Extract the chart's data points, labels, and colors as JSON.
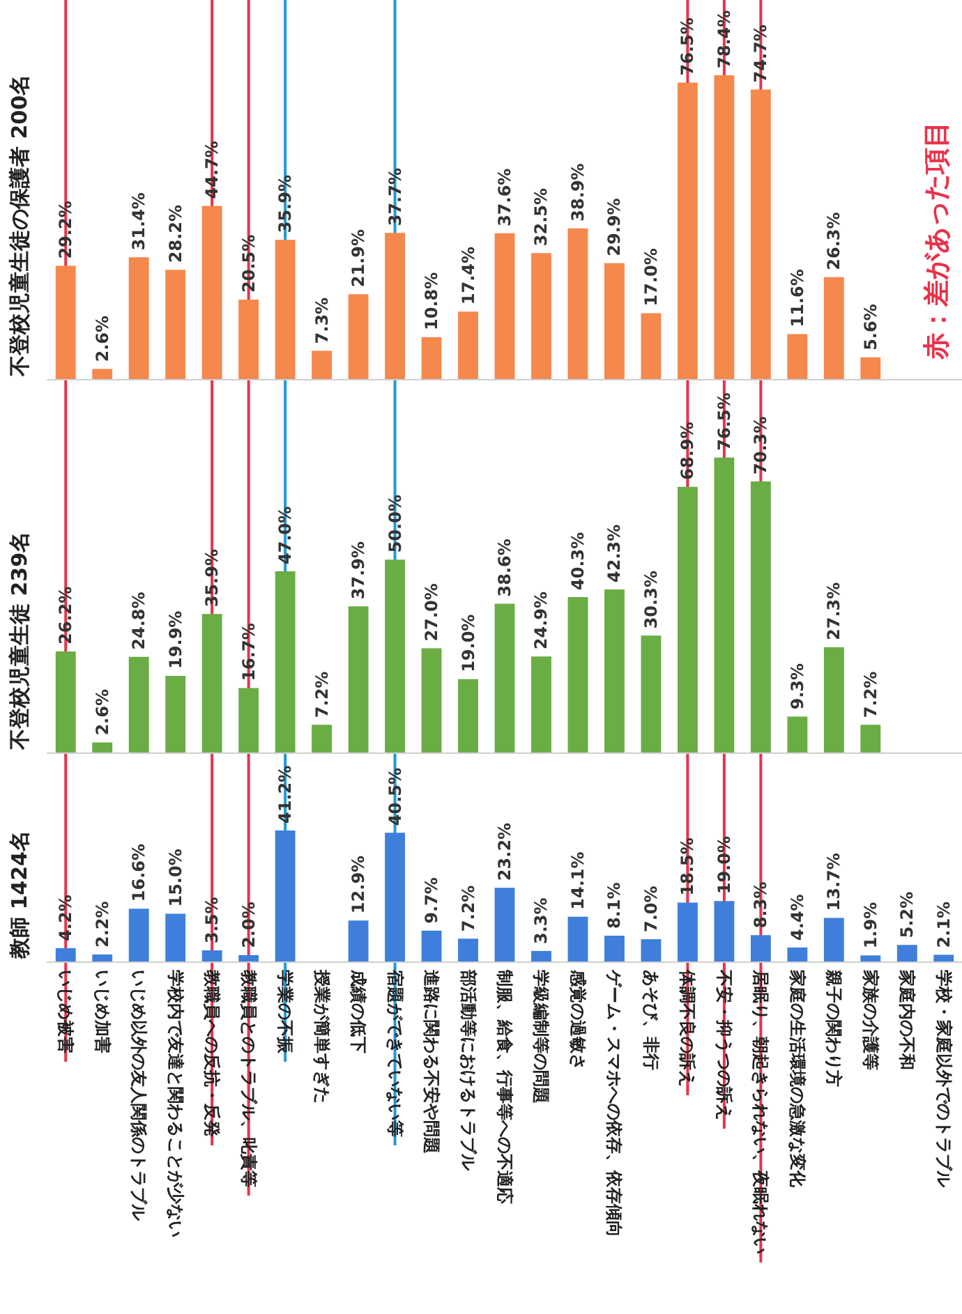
{
  "chart_data": [
    {
      "type": "bar",
      "title": "不登校児童生徒の保護者 200名",
      "tick_labels": false,
      "categories": [
        "いじめ被害",
        "いじめ加害",
        "いじめ以外の友人関係のトラブル",
        "学校内で友達と関わることが少ない",
        "教職員への反抗・反発",
        "教職員とのトラブル、叱責等",
        "学業の不振",
        "授業が簡単すぎた",
        "成績の低下",
        "宿題ができていない等",
        "進路に関わる不安や問題",
        "部活動等におけるトラブル",
        "制服、給食、行事等への不適応",
        "学級編制等の問題",
        "感覚の過敏さ",
        "ゲーム・スマホへの依存、依存傾向",
        "あそび、非行",
        "体調不良の訴え",
        "不安・抑うつの訴え",
        "居眠り、朝起きられない、夜眠れない",
        "家庭の生活環境の急激な変化",
        "親子の関わり方",
        "家族の介護等",
        "家庭内の不和",
        "学校・家庭以外でのトラブル"
      ],
      "series": [
        {
          "color": "#f4884d",
          "values": [
            29.2,
            2.6,
            31.4,
            28.2,
            44.7,
            20.5,
            35.9,
            7.3,
            21.9,
            37.7,
            10.8,
            17.4,
            37.6,
            32.5,
            38.9,
            29.9,
            17.0,
            76.5,
            78.4,
            74.7,
            11.6,
            26.3,
            5.6,
            null,
            null
          ],
          "value_labels": [
            "29.2%",
            "2.6%",
            "31.4%",
            "28.2%",
            "44.7%",
            "20.5%",
            "35.9%",
            "7.3%",
            "21.9%",
            "37.7%",
            "10.8%",
            "17.4%",
            "37.6%",
            "32.5%",
            "38.9%",
            "29.9%",
            "17.0%",
            "76.5%",
            "78.4%",
            "74.7%",
            "11.6%",
            "26.3%",
            "5.6%",
            null,
            null
          ]
        }
      ],
      "ref_lines": [
        {
          "axis": "x",
          "value": "いじめ被害",
          "color": "#e8334a"
        },
        {
          "axis": "x",
          "value": "教職員への反抗・反発",
          "color": "#e8334a"
        },
        {
          "axis": "x",
          "value": "教職員とのトラブル、叱責等",
          "color": "#e8334a"
        },
        {
          "axis": "x",
          "value": "学業の不振",
          "color": "#1f9ad6"
        },
        {
          "axis": "x",
          "value": "宿題ができていない等",
          "color": "#1f9ad6"
        },
        {
          "axis": "x",
          "value": "体調不良の訴え",
          "color": "#e8334a"
        },
        {
          "axis": "x",
          "value": "不安・抑うつの訴え",
          "color": "#e8334a"
        },
        {
          "axis": "x",
          "value": "居眠り、朝起きられない、夜眠れない",
          "color": "#e8334a"
        }
      ],
      "annotations": [
        "赤：差があった項目"
      ]
    },
    {
      "type": "bar",
      "title": "不登校児童生徒 239名",
      "tick_labels": false,
      "categories": [
        "いじめ被害",
        "いじめ加害",
        "いじめ以外の友人関係のトラブル",
        "学校内で友達と関わることが少ない",
        "教職員への反抗・反発",
        "教職員とのトラブル、叱責等",
        "学業の不振",
        "授業が簡単すぎた",
        "成績の低下",
        "宿題ができていない等",
        "進路に関わる不安や問題",
        "部活動等におけるトラブル",
        "制服、給食、行事等への不適応",
        "学級編制等の問題",
        "感覚の過敏さ",
        "ゲーム・スマホへの依存、依存傾向",
        "あそび、非行",
        "体調不良の訴え",
        "不安・抑うつの訴え",
        "居眠り、朝起きられない、夜眠れない",
        "家庭の生活環境の急激な変化",
        "親子の関わり方",
        "家族の介護等",
        "家庭内の不和",
        "学校・家庭以外でのトラブル"
      ],
      "series": [
        {
          "color": "#6aad45",
          "values": [
            26.2,
            2.6,
            24.8,
            19.9,
            35.9,
            16.7,
            47.0,
            7.2,
            37.9,
            50.0,
            27.0,
            19.0,
            38.6,
            24.9,
            40.3,
            42.3,
            30.3,
            68.9,
            76.5,
            70.3,
            9.3,
            27.3,
            7.2,
            null,
            null
          ],
          "value_labels": [
            "26.2%",
            "2.6%",
            "24.8%",
            "19.9%",
            "35.9%",
            "16.7%",
            "47.0%",
            "7.2%",
            "37.9%",
            "50.0%",
            "27.0%",
            "19.0%",
            "38.6%",
            "24.9%",
            "40.3%",
            "42.3%",
            "30.3%",
            "68.9%",
            "76.5%",
            "70.3%",
            "9.3%",
            "27.3%",
            "7.2%",
            null,
            null
          ]
        }
      ],
      "ref_lines": [
        {
          "axis": "x",
          "value": "いじめ被害",
          "color": "#e8334a"
        },
        {
          "axis": "x",
          "value": "教職員への反抗・反発",
          "color": "#e8334a"
        },
        {
          "axis": "x",
          "value": "教職員とのトラブル、叱責等",
          "color": "#e8334a"
        },
        {
          "axis": "x",
          "value": "学業の不振",
          "color": "#1f9ad6"
        },
        {
          "axis": "x",
          "value": "宿題ができていない等",
          "color": "#1f9ad6"
        },
        {
          "axis": "x",
          "value": "体調不良の訴え",
          "color": "#e8334a"
        },
        {
          "axis": "x",
          "value": "不安・抑うつの訴え",
          "color": "#e8334a"
        },
        {
          "axis": "x",
          "value": "居眠り、朝起きられない、夜眠れない",
          "color": "#e8334a"
        }
      ]
    },
    {
      "type": "bar",
      "title": "教師 1424名",
      "tick_labels": "x",
      "categories": [
        "いじめ被害",
        "いじめ加害",
        "いじめ以外の友人関係のトラブル",
        "学校内で友達と関わることが少ない",
        "教職員への反抗・反発",
        "教職員とのトラブル、叱責等",
        "学業の不振",
        "授業が簡単すぎた",
        "成績の低下",
        "宿題ができていない等",
        "進路に関わる不安や問題",
        "部活動等におけるトラブル",
        "制服、給食、行事等への不適応",
        "学級編制等の問題",
        "感覚の過敏さ",
        "ゲーム・スマホへの依存、依存傾向",
        "あそび、非行",
        "体調不良の訴え",
        "不安・抑うつの訴え",
        "居眠り、朝起きられない、夜眠れない",
        "家庭の生活環境の急激な変化",
        "親子の関わり方",
        "家族の介護等",
        "家庭内の不和",
        "学校・家庭以外でのトラブル"
      ],
      "series": [
        {
          "color": "#3f7fdb",
          "values": [
            4.2,
            2.2,
            16.6,
            15.0,
            3.5,
            2.0,
            41.2,
            null,
            12.9,
            40.5,
            9.7,
            7.2,
            23.2,
            3.3,
            14.1,
            8.1,
            7.0,
            18.5,
            19.0,
            8.3,
            4.4,
            13.7,
            1.9,
            5.2,
            2.1
          ],
          "value_labels": [
            "4.2%",
            "2.2%",
            "16.6%",
            "15.0%",
            "3.5%",
            "2.0%",
            "41.2%",
            null,
            "12.9%",
            "40.5%",
            "9.7%",
            "7.2%",
            "23.2%",
            "3.3%",
            "14.1%",
            "8.1%",
            "7.0%",
            "18.5%",
            "19.0%",
            "8.3%",
            "4.4%",
            "13.7%",
            "1.9%",
            "5.2%",
            "2.1%"
          ]
        }
      ],
      "ref_lines": [
        {
          "axis": "x",
          "value": "いじめ被害",
          "color": "#e8334a"
        },
        {
          "axis": "x",
          "value": "教職員への反抗・反発",
          "color": "#e8334a"
        },
        {
          "axis": "x",
          "value": "教職員とのトラブル、叱責等",
          "color": "#e8334a"
        },
        {
          "axis": "x",
          "value": "学業の不振",
          "color": "#1f9ad6"
        },
        {
          "axis": "x",
          "value": "宿題ができていない等",
          "color": "#1f9ad6"
        },
        {
          "axis": "x",
          "value": "体調不良の訴え",
          "color": "#e8334a"
        },
        {
          "axis": "x",
          "value": "不安・抑うつの訴え",
          "color": "#e8334a"
        },
        {
          "axis": "x",
          "value": "居眠り、朝起きられない、夜眠れない",
          "color": "#e8334a"
        }
      ]
    }
  ]
}
